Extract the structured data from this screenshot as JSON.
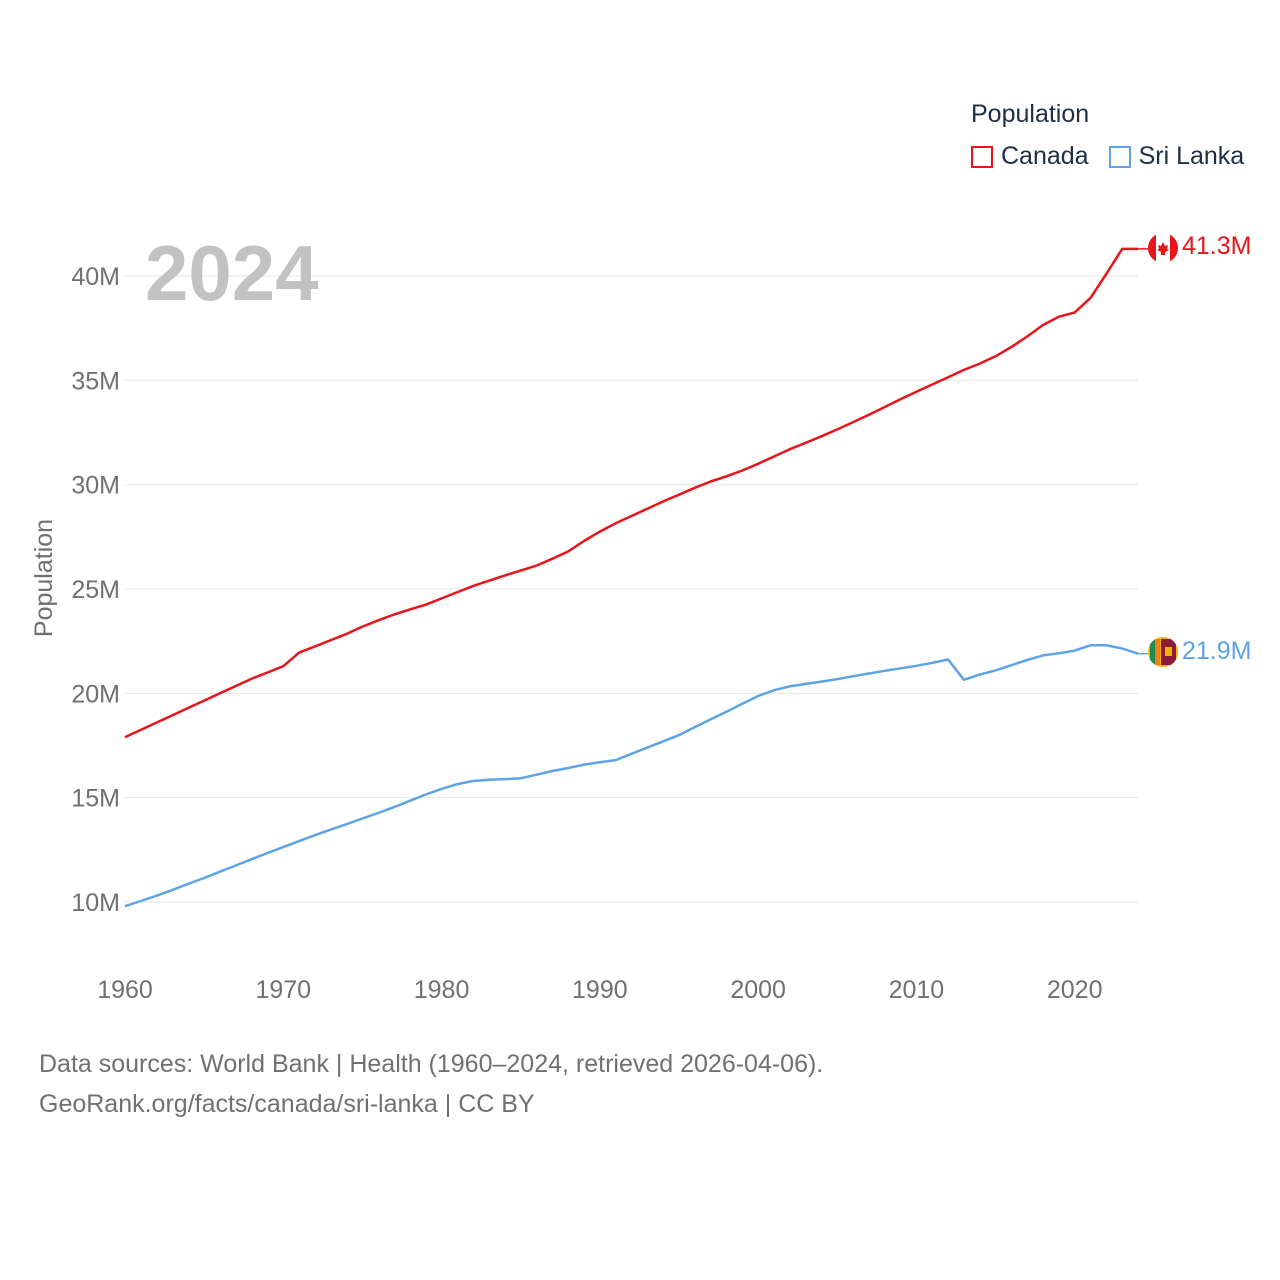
{
  "legend": {
    "title": "Population",
    "items": [
      {
        "name": "Canada",
        "color": "#e8141a"
      },
      {
        "name": "Sri Lanka",
        "color": "#5ea3e6"
      }
    ]
  },
  "footer": {
    "line1": "Data sources: World Bank | Health (1960–2024, retrieved 2026-04-06).",
    "line2": "GeoRank.org/facts/canada/sri-lanka | CC BY"
  },
  "chart_data": {
    "type": "line",
    "title": "",
    "year_label": "2024",
    "xlabel": "",
    "ylabel": "Population",
    "xlim": [
      1960,
      2024
    ],
    "ylim": [
      10000000,
      40000000
    ],
    "x_ticks": [
      1960,
      1970,
      1980,
      1990,
      2000,
      2010,
      2020
    ],
    "x_tick_labels": [
      "1960",
      "1970",
      "1980",
      "1990",
      "2000",
      "2010",
      "2020"
    ],
    "y_ticks": [
      10000000,
      15000000,
      20000000,
      25000000,
      30000000,
      35000000,
      40000000
    ],
    "y_tick_labels": [
      "10M",
      "15M",
      "20M",
      "25M",
      "30M",
      "35M",
      "40M"
    ],
    "grid": true,
    "legend_position": "top-right",
    "x": [
      1960,
      1961,
      1962,
      1963,
      1964,
      1965,
      1966,
      1967,
      1968,
      1969,
      1970,
      1971,
      1972,
      1973,
      1974,
      1975,
      1976,
      1977,
      1978,
      1979,
      1980,
      1981,
      1982,
      1983,
      1984,
      1985,
      1986,
      1987,
      1988,
      1989,
      1990,
      1991,
      1992,
      1993,
      1994,
      1995,
      1996,
      1997,
      1998,
      1999,
      2000,
      2001,
      2002,
      2003,
      2004,
      2005,
      2006,
      2007,
      2008,
      2009,
      2010,
      2011,
      2012,
      2013,
      2014,
      2015,
      2016,
      2017,
      2018,
      2019,
      2020,
      2021,
      2022,
      2023,
      2024
    ],
    "series": [
      {
        "name": "Canada",
        "color": "#e8141a",
        "end_label": "41.3M",
        "values": [
          17900000,
          18250000,
          18600000,
          18950000,
          19300000,
          19650000,
          20000000,
          20350000,
          20700000,
          21000000,
          21300000,
          21950000,
          22250000,
          22550000,
          22850000,
          23200000,
          23500000,
          23780000,
          24020000,
          24250000,
          24550000,
          24850000,
          25150000,
          25400000,
          25650000,
          25880000,
          26120000,
          26450000,
          26800000,
          27300000,
          27750000,
          28150000,
          28500000,
          28850000,
          29200000,
          29520000,
          29850000,
          30150000,
          30400000,
          30680000,
          31000000,
          31350000,
          31700000,
          32000000,
          32320000,
          32650000,
          33000000,
          33350000,
          33720000,
          34100000,
          34450000,
          34800000,
          35150000,
          35500000,
          35800000,
          36150000,
          36600000,
          37100000,
          37650000,
          38050000,
          38250000,
          38950000,
          40100000,
          41300000,
          41300000
        ]
      },
      {
        "name": "Sri Lanka",
        "color": "#5ea3e6",
        "end_label": "21.9M",
        "values": [
          9800000,
          10050000,
          10300000,
          10580000,
          10870000,
          11150000,
          11450000,
          11750000,
          12050000,
          12350000,
          12630000,
          12920000,
          13200000,
          13470000,
          13730000,
          14000000,
          14270000,
          14550000,
          14850000,
          15150000,
          15420000,
          15650000,
          15800000,
          15860000,
          15890000,
          15930000,
          16100000,
          16280000,
          16420000,
          16580000,
          16700000,
          16800000,
          17100000,
          17400000,
          17700000,
          18000000,
          18380000,
          18750000,
          19120000,
          19500000,
          19870000,
          20150000,
          20330000,
          20450000,
          20560000,
          20680000,
          20820000,
          20950000,
          21080000,
          21200000,
          21320000,
          21460000,
          21620000,
          20650000,
          20900000,
          21100000,
          21350000,
          21600000,
          21820000,
          21920000,
          22050000,
          22300000,
          22300000,
          22150000,
          21900000
        ]
      }
    ]
  }
}
